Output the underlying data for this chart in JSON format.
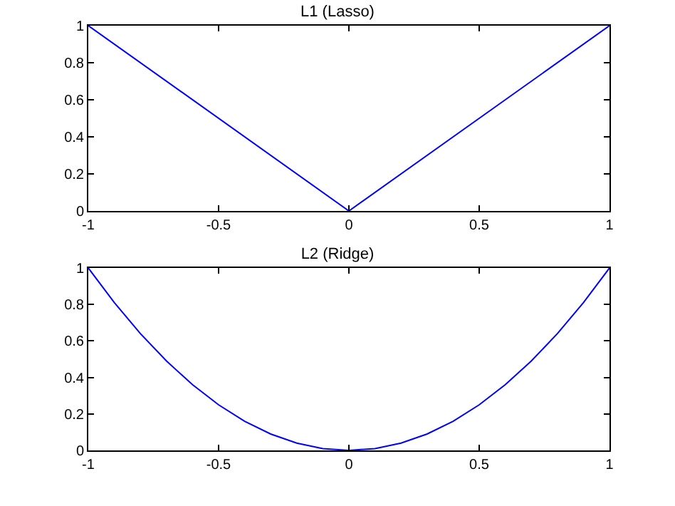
{
  "chart_data": [
    {
      "type": "line",
      "title": "L1 (Lasso)",
      "x": [
        -1,
        0,
        1
      ],
      "series": [
        {
          "color": "#0000ff",
          "values": [
            1,
            0,
            1
          ]
        }
      ],
      "xlim": [
        -1,
        1
      ],
      "ylim": [
        0,
        1
      ],
      "xticks": [
        -1,
        -0.5,
        0,
        0.5,
        1
      ],
      "yticks": [
        0,
        0.2,
        0.4,
        0.6,
        0.8,
        1
      ]
    },
    {
      "type": "line",
      "title": "L2 (Ridge)",
      "x": [
        -1,
        -0.9,
        -0.8,
        -0.7,
        -0.6,
        -0.5,
        -0.4,
        -0.3,
        -0.2,
        -0.1,
        0,
        0.1,
        0.2,
        0.3,
        0.4,
        0.5,
        0.6,
        0.7,
        0.8,
        0.9,
        1
      ],
      "series": [
        {
          "color": "#0000ff",
          "values": [
            1,
            0.81,
            0.64,
            0.49,
            0.36,
            0.25,
            0.16,
            0.09,
            0.04,
            0.01,
            0,
            0.01,
            0.04,
            0.09,
            0.16,
            0.25,
            0.36,
            0.49,
            0.64,
            0.81,
            1
          ]
        }
      ],
      "xlim": [
        -1,
        1
      ],
      "ylim": [
        0,
        1
      ],
      "xticks": [
        -1,
        -0.5,
        0,
        0.5,
        1
      ],
      "yticks": [
        0,
        0.2,
        0.4,
        0.6,
        0.8,
        1
      ]
    }
  ]
}
